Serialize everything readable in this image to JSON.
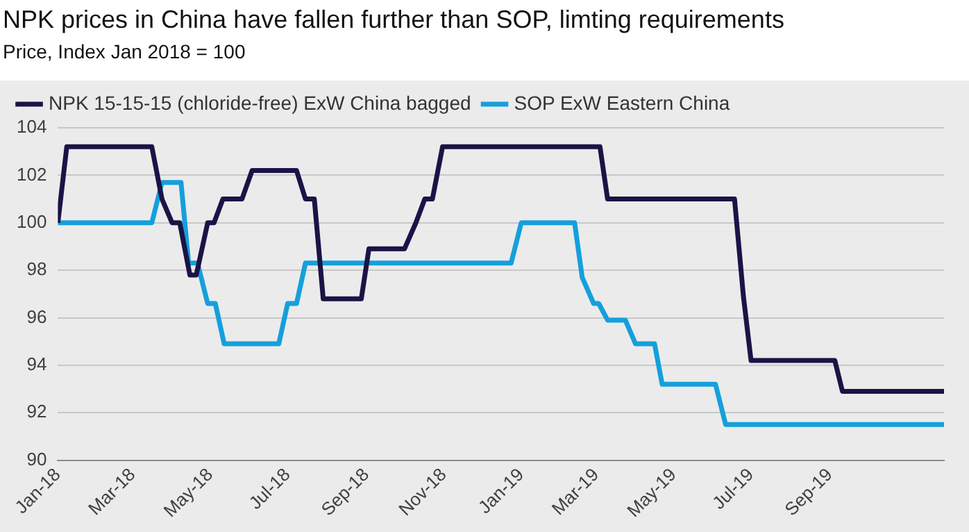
{
  "chart_data": {
    "type": "line",
    "title": "NPK prices in China have fallen further than SOP, limting requirements",
    "subtitle": "Price, Index Jan 2018 = 100",
    "series": [
      {
        "name": "NPK 15-15-15 (chloride-free) ExW China bagged",
        "color": "#1a1446",
        "x": [
          "2018-01-01",
          "2018-01-08",
          "2018-03-16",
          "2018-03-24",
          "2018-04-01",
          "2018-04-07",
          "2018-04-15",
          "2018-04-20",
          "2018-04-29",
          "2018-05-04",
          "2018-05-11",
          "2018-05-26",
          "2018-06-03",
          "2018-07-08",
          "2018-07-15",
          "2018-07-22",
          "2018-07-29",
          "2018-08-28",
          "2018-09-03",
          "2018-10-01",
          "2018-10-10",
          "2018-10-17",
          "2018-10-23",
          "2018-10-31",
          "2019-03-04",
          "2019-03-10",
          "2019-06-18",
          "2019-06-25",
          "2019-07-01",
          "2019-09-05",
          "2019-09-11",
          "2019-11-30"
        ],
        "values": [
          100,
          103.2,
          103.2,
          101,
          100,
          100,
          97.8,
          97.8,
          100,
          100,
          101,
          101,
          102.2,
          102.2,
          101,
          101,
          96.8,
          96.8,
          98.9,
          98.9,
          100,
          101,
          101,
          103.2,
          103.2,
          101,
          101,
          96.9,
          94.2,
          94.2,
          92.9,
          92.9
        ]
      },
      {
        "name": "SOP ExW Eastern China",
        "color": "#14a0dc",
        "x": [
          "2018-01-01",
          "2018-03-16",
          "2018-03-24",
          "2018-04-08",
          "2018-04-14",
          "2018-04-21",
          "2018-04-29",
          "2018-05-05",
          "2018-05-12",
          "2018-06-24",
          "2018-07-01",
          "2018-07-08",
          "2018-07-15",
          "2018-12-24",
          "2019-01-01",
          "2019-02-12",
          "2019-02-18",
          "2019-02-27",
          "2019-03-03",
          "2019-03-10",
          "2019-03-24",
          "2019-04-01",
          "2019-04-16",
          "2019-04-22",
          "2019-06-03",
          "2019-06-11",
          "2019-11-30"
        ],
        "values": [
          100,
          100,
          101.7,
          101.7,
          98.3,
          98.3,
          96.6,
          96.6,
          94.9,
          94.9,
          96.6,
          96.6,
          98.3,
          98.3,
          100,
          100,
          97.7,
          96.6,
          96.6,
          95.9,
          95.9,
          94.9,
          94.9,
          93.2,
          93.2,
          91.5,
          91.5
        ]
      }
    ],
    "xlim": [
      "2018-01-01",
      "2019-11-30"
    ],
    "xticks": [
      {
        "value": "2018-01",
        "label": "Jan-18"
      },
      {
        "value": "2018-03",
        "label": "Mar-18"
      },
      {
        "value": "2018-05",
        "label": "May-18"
      },
      {
        "value": "2018-07",
        "label": "Jul-18"
      },
      {
        "value": "2018-09",
        "label": "Sep-18"
      },
      {
        "value": "2018-11",
        "label": "Nov-18"
      },
      {
        "value": "2019-01",
        "label": "Jan-19"
      },
      {
        "value": "2019-03",
        "label": "Mar-19"
      },
      {
        "value": "2019-05",
        "label": "May-19"
      },
      {
        "value": "2019-07",
        "label": "Jul-19"
      },
      {
        "value": "2019-09",
        "label": "Sep-19"
      }
    ],
    "ylim": [
      90,
      104
    ],
    "yticks": [
      90,
      92,
      94,
      96,
      98,
      100,
      102,
      104
    ],
    "grid": "y",
    "legend": "top",
    "marker": "none",
    "line_style": "solid"
  }
}
